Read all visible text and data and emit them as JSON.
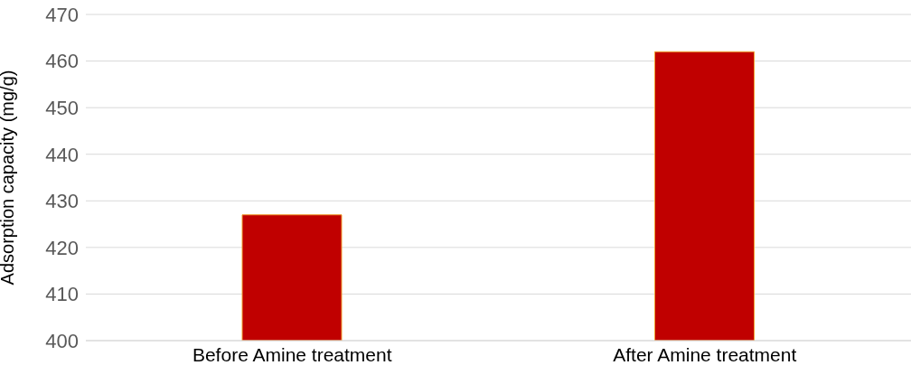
{
  "chart_data": {
    "type": "bar",
    "ylabel": "Adsorption capacity (mg/g)",
    "categories": [
      "Before Amine treatment",
      "After Amine treatment"
    ],
    "values": [
      427,
      462
    ],
    "color": "#c00000",
    "ylim": [
      400,
      470
    ],
    "yticks": [
      400,
      410,
      420,
      430,
      440,
      450,
      460,
      470
    ],
    "grid": "y",
    "legend": false
  }
}
